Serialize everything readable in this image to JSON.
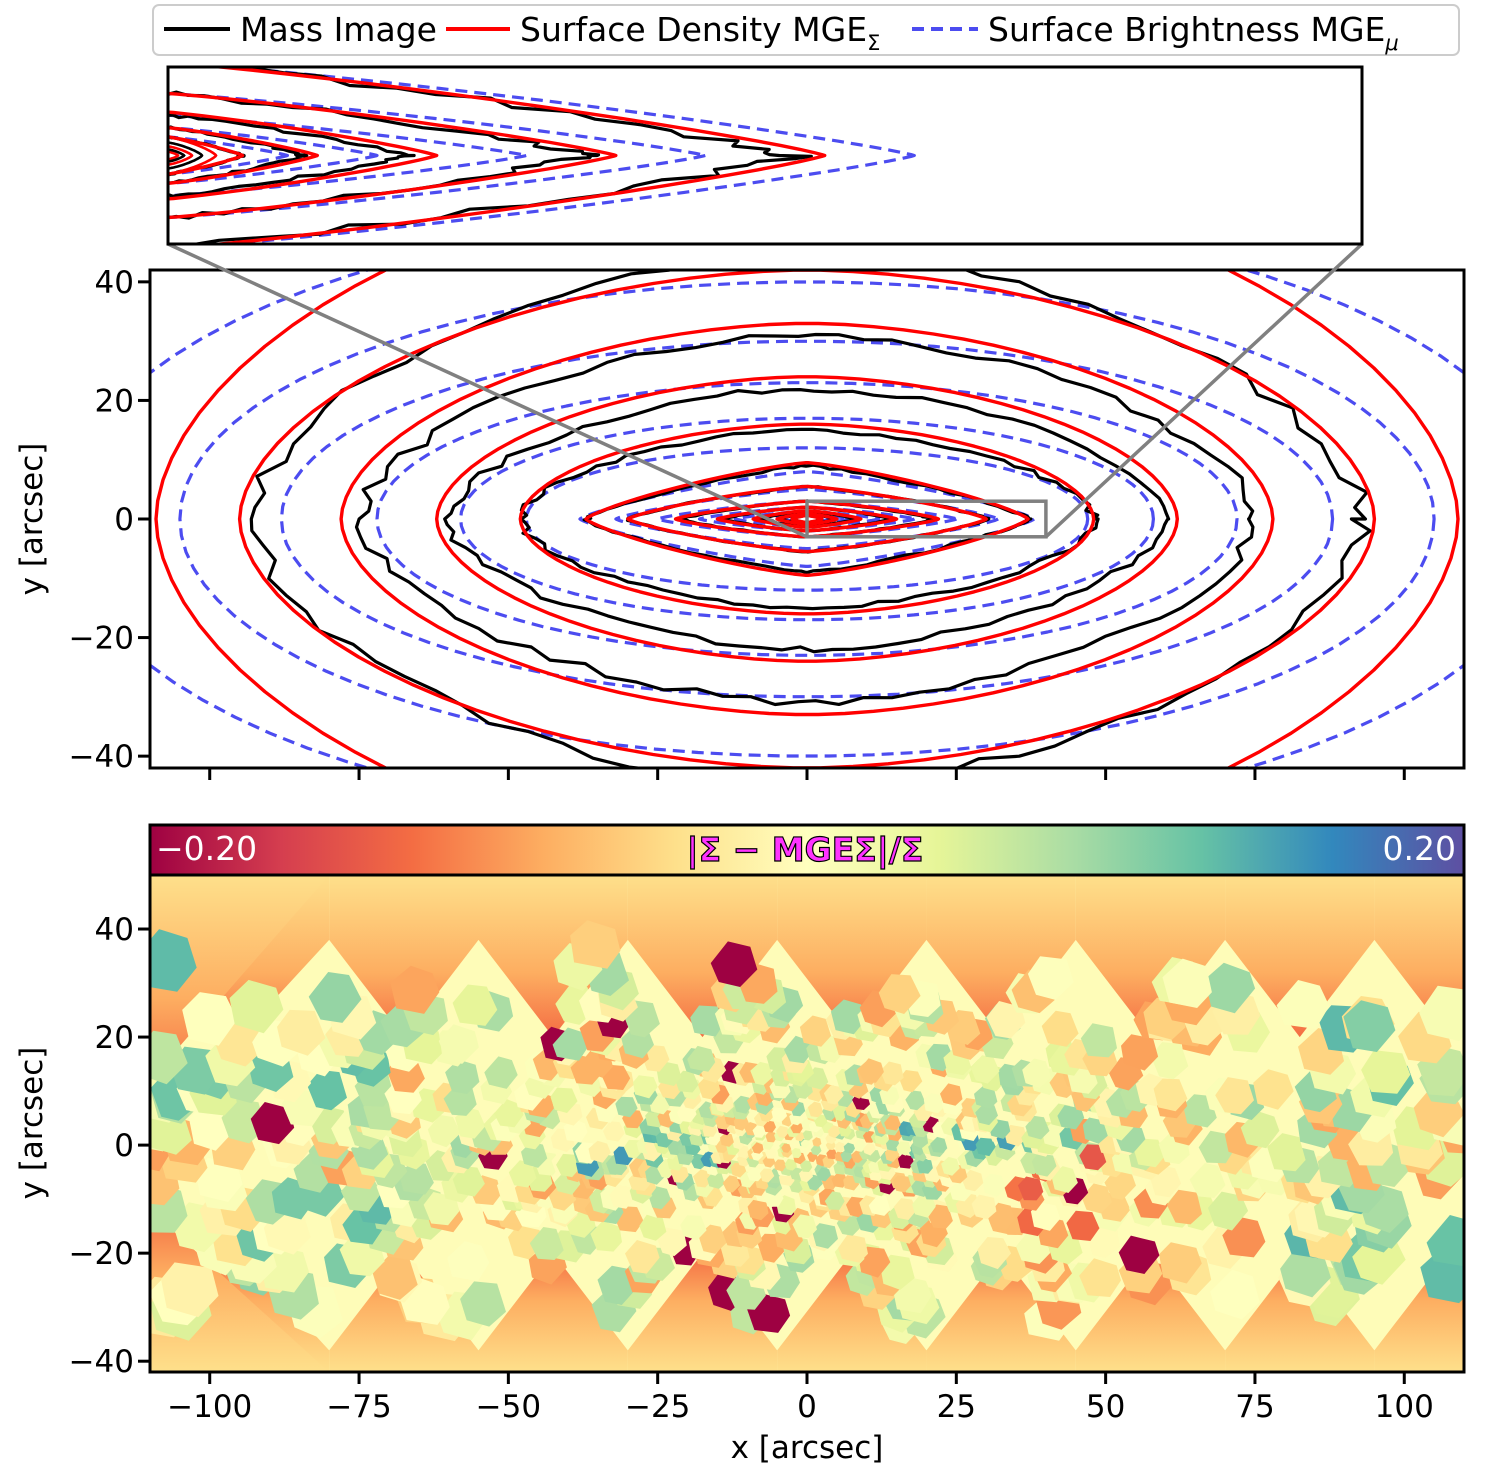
{
  "chart_data": [
    {
      "type": "contour",
      "panel": "top",
      "xlabel": "",
      "ylabel": "y [arcsec]",
      "xlim": [
        -110,
        110
      ],
      "ylim": [
        -42,
        42
      ],
      "xticks": [
        -100,
        -75,
        -50,
        -25,
        0,
        25,
        50,
        75,
        100
      ],
      "yticks": [
        40,
        20,
        0,
        -20,
        -40
      ],
      "ytick_labels": [
        "40",
        "20",
        "0",
        "−20",
        "−40"
      ],
      "legend": {
        "placement": "top",
        "entries": [
          {
            "label": "Mass Image",
            "color": "#000000",
            "style": "solid"
          },
          {
            "label": "Surface Density MGE",
            "subscript": "Σ",
            "color": "#ff0000",
            "style": "solid"
          },
          {
            "label": "Surface Brightness MGE",
            "subscript": "μ",
            "color": "#4c4cf0",
            "style": "dashed"
          }
        ]
      },
      "series": [
        {
          "name": "Mass Image",
          "color": "#000000",
          "contour_semi_axes": [
            [
              93,
              45
            ],
            [
              75,
              31
            ],
            [
              60,
              22
            ],
            [
              48,
              15
            ],
            [
              37,
              9
            ],
            [
              30,
              5.5
            ],
            [
              21,
              3
            ],
            [
              14,
              2
            ],
            [
              8,
              1.3
            ],
            [
              4.5,
              0.9
            ],
            [
              2.5,
              0.6
            ]
          ]
        },
        {
          "name": "Surface Density MGE",
          "color": "#ff0000",
          "contour_semi_axes": [
            [
              109,
              59
            ],
            [
              95,
              42
            ],
            [
              78,
              33
            ],
            [
              62,
              24
            ],
            [
              48,
              16
            ],
            [
              37,
              9.5
            ],
            [
              30,
              5.5
            ],
            [
              22,
              3
            ],
            [
              15,
              2
            ],
            [
              9,
              1.4
            ],
            [
              5,
              0.9
            ],
            [
              2.5,
              0.6
            ]
          ]
        },
        {
          "name": "Surface Brightness MGE",
          "color": "#4c4cf0",
          "contour_semi_axes": [
            [
              125,
              52
            ],
            [
              105,
              40
            ],
            [
              88,
              30
            ],
            [
              72,
              23
            ],
            [
              58,
              17
            ],
            [
              47,
              12
            ],
            [
              38,
              8
            ],
            [
              32,
              5
            ],
            [
              25,
              3
            ],
            [
              18,
              2
            ],
            [
              12,
              1.3
            ],
            [
              7,
              0.9
            ],
            [
              4,
              0.6
            ]
          ]
        }
      ],
      "zoom_box": {
        "x": [
          0,
          40
        ],
        "y": [
          -3,
          3
        ]
      },
      "inset_xlim": [
        0,
        40
      ],
      "inset_ylim": [
        -3,
        3
      ],
      "grid": false
    },
    {
      "type": "heatmap",
      "panel": "bottom",
      "title": "|Σ − MGEΣ|/Σ",
      "xlabel": "x [arcsec]",
      "ylabel": "y [arcsec]",
      "xlim": [
        -110,
        110
      ],
      "ylim": [
        -42,
        50
      ],
      "xticks": [
        -100,
        -75,
        -50,
        -25,
        0,
        25,
        50,
        75,
        100
      ],
      "xtick_labels": [
        "−100",
        "−75",
        "−50",
        "−25",
        "0",
        "25",
        "50",
        "75",
        "100"
      ],
      "yticks": [
        40,
        20,
        0,
        -20,
        -40
      ],
      "ytick_labels": [
        "40",
        "20",
        "0",
        "−20",
        "−40"
      ],
      "colorbar": {
        "min": -0.2,
        "max": 0.2,
        "min_label": "−0.20",
        "max_label": "0.20",
        "colormap": "Spectral",
        "placement": "top (inside)"
      },
      "value_range": [
        -0.2,
        0.2
      ],
      "grid": false
    }
  ],
  "colors": {
    "mass_image": "#000000",
    "surface_density": "#ff0000",
    "surface_brightness": "#4c4cf0",
    "zoom_box": "#808080",
    "colorbar_title": "#ff33ff"
  }
}
